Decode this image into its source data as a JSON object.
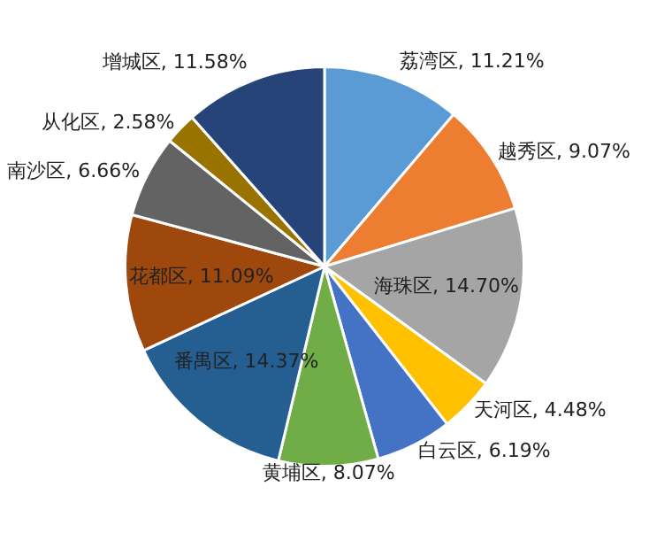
{
  "chart_data": {
    "type": "pie",
    "categories": [
      "荔湾区",
      "越秀区",
      "海珠区",
      "天河区",
      "白云区",
      "黄埔区",
      "番禺区",
      "花都区",
      "南沙区",
      "从化区",
      "增城区"
    ],
    "values": [
      11.21,
      9.07,
      14.7,
      4.48,
      6.19,
      8.07,
      14.37,
      11.09,
      6.66,
      2.58,
      11.58
    ],
    "value_labels": [
      ", 11.21%",
      ", 9.07%",
      ", 14.70%",
      ", 4.48%",
      ", 6.19%",
      ", 8.07%",
      ", 14.37%",
      ", 11.09%",
      ", 6.66%",
      ", 2.58%",
      ", 11.58%"
    ],
    "colors": [
      "#5b9bd5",
      "#ed7d31",
      "#a5a5a5",
      "#ffc000",
      "#4472c4",
      "#70ad47",
      "#255e91",
      "#9e480e",
      "#636363",
      "#997300",
      "#264478"
    ],
    "legend": false
  }
}
